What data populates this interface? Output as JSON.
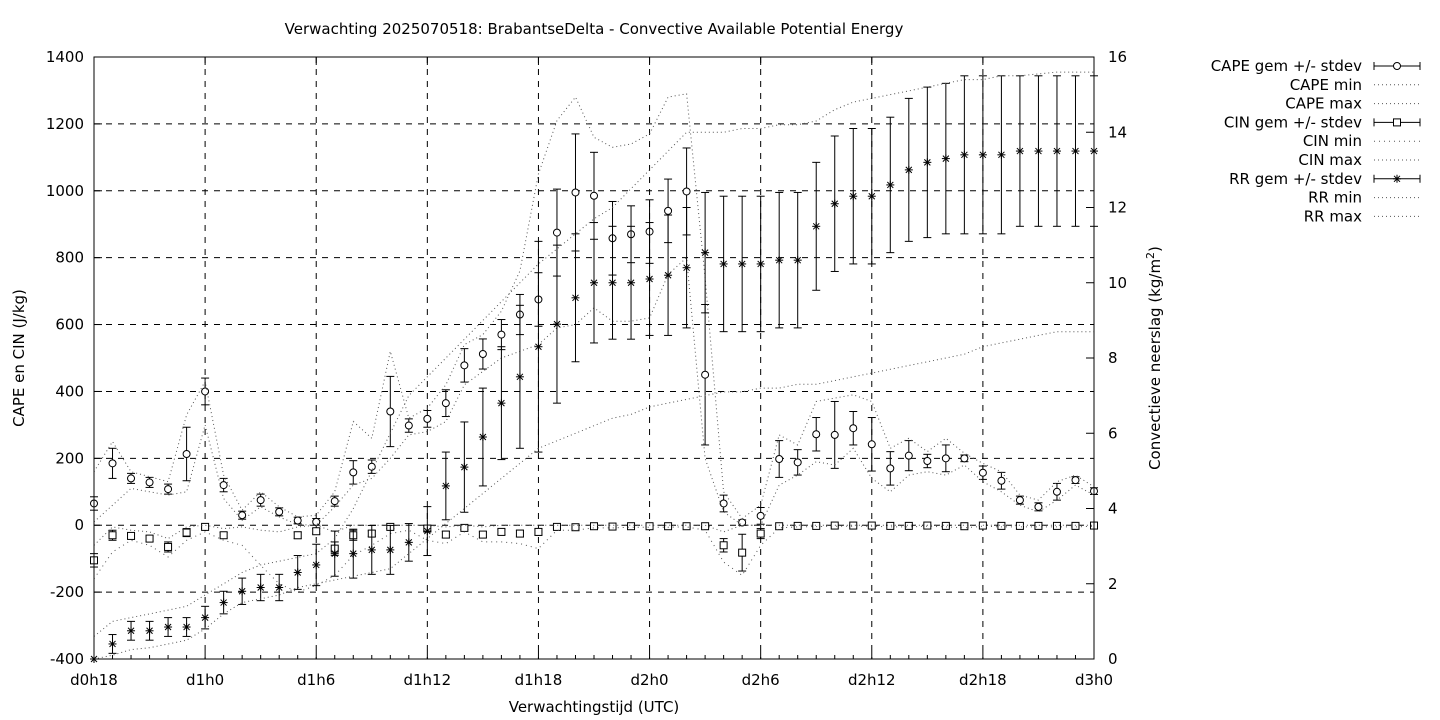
{
  "chart_data": {
    "type": "line",
    "title": "Verwachting 2025070518: BrabantseDelta - Convective Available Potential Energy",
    "xlabel": "Verwachtingstijd (UTC)",
    "ylabel": "CAPE en CIN (J/kg)",
    "y2label_main": "Convectieve neerslag (kg/m",
    "y2label_sup": "2",
    "y2label_end": ")",
    "xlim": [
      18,
      72
    ],
    "ylim": [
      -400,
      1400
    ],
    "y2lim": [
      0,
      16
    ],
    "grid": true,
    "legend_position": "top-right",
    "x_ticks": [
      {
        "value": 18,
        "label": "d0h18"
      },
      {
        "value": 24,
        "label": "d1h0"
      },
      {
        "value": 30,
        "label": "d1h6"
      },
      {
        "value": 36,
        "label": "d1h12"
      },
      {
        "value": 42,
        "label": "d1h18"
      },
      {
        "value": 48,
        "label": "d2h0"
      },
      {
        "value": 54,
        "label": "d2h6"
      },
      {
        "value": 60,
        "label": "d2h12"
      },
      {
        "value": 66,
        "label": "d2h18"
      },
      {
        "value": 72,
        "label": "d3h0"
      }
    ],
    "y_ticks": [
      {
        "value": -400,
        "label": "-400"
      },
      {
        "value": -200,
        "label": "-200"
      },
      {
        "value": 0,
        "label": "0"
      },
      {
        "value": 200,
        "label": "200"
      },
      {
        "value": 400,
        "label": "400"
      },
      {
        "value": 600,
        "label": "600"
      },
      {
        "value": 800,
        "label": "800"
      },
      {
        "value": 1000,
        "label": "1000"
      },
      {
        "value": 1200,
        "label": "1200"
      },
      {
        "value": 1400,
        "label": "1400"
      }
    ],
    "y2_ticks": [
      {
        "value": 0,
        "label": "0"
      },
      {
        "value": 2,
        "label": "2"
      },
      {
        "value": 4,
        "label": "4"
      },
      {
        "value": 6,
        "label": "6"
      },
      {
        "value": 8,
        "label": "8"
      },
      {
        "value": 10,
        "label": "10"
      },
      {
        "value": 12,
        "label": "12"
      },
      {
        "value": 14,
        "label": "14"
      },
      {
        "value": 16,
        "label": "16"
      }
    ],
    "x": [
      18,
      19,
      20,
      21,
      22,
      23,
      24,
      25,
      26,
      27,
      28,
      29,
      30,
      31,
      32,
      33,
      34,
      35,
      36,
      37,
      38,
      39,
      40,
      41,
      42,
      43,
      44,
      45,
      46,
      47,
      48,
      49,
      50,
      51,
      52,
      53,
      54,
      55,
      56,
      57,
      58,
      59,
      60,
      61,
      62,
      63,
      64,
      65,
      66,
      67,
      68,
      69,
      70,
      71,
      72
    ],
    "series": [
      {
        "name": "CAPE gem +/- stdev",
        "axis": "y",
        "marker": "circle",
        "values": [
          65,
          185,
          140,
          128,
          108,
          213,
          400,
          120,
          30,
          75,
          40,
          14,
          10,
          72,
          158,
          175,
          340,
          298,
          318,
          365,
          478,
          512,
          570,
          630,
          675,
          875,
          995,
          985,
          858,
          870,
          878,
          940,
          998,
          450,
          65,
          8,
          28,
          198,
          188,
          272,
          270,
          290,
          242,
          170,
          208,
          192,
          200,
          200,
          157,
          133,
          75,
          55,
          100,
          135,
          102
        ],
        "err": [
          20,
          45,
          15,
          15,
          15,
          80,
          40,
          20,
          12,
          18,
          12,
          10,
          10,
          15,
          35,
          20,
          105,
          20,
          25,
          40,
          50,
          45,
          45,
          60,
          80,
          130,
          175,
          130,
          110,
          85,
          95,
          95,
          130,
          210,
          25,
          8,
          25,
          55,
          38,
          50,
          100,
          50,
          80,
          50,
          45,
          20,
          40,
          10,
          20,
          25,
          12,
          12,
          25,
          10,
          10
        ]
      },
      {
        "name": "CAPE min",
        "axis": "y",
        "values": [
          10,
          60,
          110,
          100,
          90,
          100,
          300,
          80,
          15,
          55,
          25,
          2,
          0,
          55,
          120,
          140,
          200,
          270,
          280,
          310,
          420,
          460,
          500,
          520,
          540,
          590,
          600,
          650,
          610,
          610,
          620,
          750,
          800,
          200,
          40,
          0,
          0,
          120,
          150,
          190,
          180,
          230,
          140,
          100,
          150,
          160,
          150,
          180,
          130,
          100,
          60,
          40,
          75,
          120,
          90
        ]
      },
      {
        "name": "CAPE max",
        "axis": "y",
        "values": [
          160,
          250,
          160,
          145,
          130,
          330,
          430,
          150,
          45,
          100,
          55,
          25,
          30,
          100,
          310,
          260,
          520,
          320,
          350,
          420,
          540,
          570,
          640,
          760,
          1050,
          1210,
          1280,
          1160,
          1130,
          1140,
          1170,
          1280,
          1290,
          740,
          100,
          20,
          60,
          270,
          240,
          370,
          380,
          390,
          370,
          230,
          260,
          220,
          260,
          215,
          185,
          160,
          90,
          75,
          130,
          150,
          115
        ]
      },
      {
        "name": "CIN gem +/- stdev",
        "axis": "y",
        "marker": "square",
        "values": [
          -105,
          -30,
          -32,
          -40,
          -65,
          -22,
          -5,
          -30,
          null,
          null,
          null,
          -30,
          -18,
          -70,
          -30,
          -25,
          -5,
          null,
          -10,
          -28,
          -8,
          -28,
          -20,
          -25,
          -20,
          -5,
          -6,
          -3,
          -4,
          -3,
          -3,
          -3,
          -3,
          -3,
          -60,
          -82,
          -25,
          -3,
          -2,
          -2,
          -1,
          -1,
          -1,
          -2,
          -2,
          -1,
          -2,
          -3,
          -1,
          -2,
          -2,
          -2,
          -2,
          -2,
          -1
        ],
        "err": [
          20,
          15,
          8,
          8,
          15,
          12,
          4,
          8,
          null,
          null,
          null,
          10,
          8,
          20,
          15,
          8,
          5,
          null,
          8,
          10,
          5,
          8,
          8,
          10,
          10,
          4,
          4,
          3,
          3,
          2,
          2,
          2,
          2,
          2,
          20,
          55,
          15,
          3,
          2,
          2,
          1,
          1,
          1,
          2,
          2,
          1,
          2,
          3,
          1,
          2,
          2,
          2,
          2,
          2,
          1
        ]
      },
      {
        "name": "CIN min",
        "axis": "y",
        "values": [
          -160,
          -80,
          -45,
          -60,
          -95,
          -45,
          -20,
          -45,
          -60,
          -120,
          -175,
          -200,
          -180,
          -150,
          -90,
          -60,
          -25,
          -15,
          -45,
          -55,
          -20,
          -50,
          -50,
          -55,
          -70,
          -15,
          -15,
          -8,
          -8,
          -6,
          -6,
          -6,
          -5,
          -15,
          -110,
          -150,
          -60,
          -8,
          -5,
          -4,
          -3,
          -3,
          -3,
          -5,
          -5,
          -3,
          -5,
          -8,
          -3,
          -5,
          -5,
          -5,
          -5,
          -5,
          -3
        ]
      },
      {
        "name": "CIN max",
        "axis": "y",
        "values": [
          -60,
          -5,
          -15,
          -20,
          -40,
          -5,
          0,
          -10,
          -5,
          -15,
          -20,
          -5,
          0,
          -20,
          0,
          0,
          0,
          0,
          0,
          -5,
          0,
          -5,
          0,
          0,
          0,
          0,
          0,
          0,
          0,
          0,
          0,
          0,
          0,
          0,
          -20,
          0,
          0,
          0,
          0,
          0,
          0,
          0,
          0,
          0,
          0,
          0,
          0,
          0,
          0,
          0,
          0,
          0,
          0,
          0,
          0
        ]
      },
      {
        "name": "RR gem +/- stdev",
        "axis": "y2",
        "marker": "star",
        "values": [
          0,
          0.4,
          0.75,
          0.75,
          0.85,
          0.85,
          1.1,
          1.5,
          1.8,
          1.9,
          1.9,
          2.3,
          2.5,
          2.8,
          2.8,
          2.9,
          2.9,
          3.1,
          3.4,
          4.6,
          5.1,
          5.9,
          6.8,
          7.5,
          8.3,
          8.9,
          9.6,
          10.0,
          10.0,
          10.0,
          10.1,
          10.2,
          10.4,
          10.8,
          10.5,
          10.5,
          10.5,
          10.6,
          10.6,
          11.5,
          12.1,
          12.3,
          12.3,
          12.6,
          13.0,
          13.2,
          13.3,
          13.4,
          13.4,
          13.4,
          13.5,
          13.5,
          13.5,
          13.5,
          13.5
        ],
        "err": [
          0,
          0.25,
          0.25,
          0.25,
          0.25,
          0.25,
          0.3,
          0.3,
          0.35,
          0.35,
          0.35,
          0.45,
          0.55,
          0.6,
          0.65,
          0.65,
          0.65,
          0.5,
          0.65,
          0.9,
          1.2,
          1.3,
          1.5,
          1.9,
          2.8,
          2.1,
          1.7,
          1.6,
          1.5,
          1.5,
          1.5,
          1.6,
          1.6,
          1.6,
          1.8,
          1.8,
          1.8,
          1.8,
          1.8,
          1.7,
          1.8,
          1.8,
          1.8,
          1.8,
          1.9,
          2.0,
          2.0,
          2.1,
          2.1,
          2.1,
          2.0,
          2.0,
          2.0,
          2.0,
          2.0
        ]
      },
      {
        "name": "RR min",
        "axis": "y2",
        "values": [
          0,
          0.1,
          0.25,
          0.3,
          0.4,
          0.5,
          0.8,
          1.2,
          1.5,
          1.6,
          1.7,
          1.9,
          2.0,
          2.1,
          2.2,
          2.3,
          2.4,
          2.8,
          3.2,
          3.6,
          4.0,
          4.4,
          4.8,
          5.2,
          5.6,
          5.8,
          6.0,
          6.2,
          6.4,
          6.5,
          6.7,
          6.8,
          6.9,
          7.0,
          7.1,
          7.1,
          7.2,
          7.2,
          7.3,
          7.3,
          7.4,
          7.5,
          7.6,
          7.7,
          7.8,
          7.9,
          8.0,
          8.1,
          8.3,
          8.4,
          8.5,
          8.6,
          8.7,
          8.7,
          8.7
        ]
      },
      {
        "name": "RR max",
        "axis": "y2",
        "values": [
          0.6,
          1.0,
          1.1,
          1.2,
          1.3,
          1.4,
          1.7,
          2.0,
          2.3,
          2.5,
          2.6,
          2.7,
          2.8,
          3.2,
          4.0,
          5.0,
          6.0,
          7.0,
          7.5,
          8.0,
          8.5,
          9.0,
          9.5,
          10.0,
          10.5,
          10.9,
          11.3,
          11.7,
          12.0,
          12.5,
          13.0,
          13.5,
          14.0,
          14.0,
          14.0,
          14.1,
          14.1,
          14.2,
          14.2,
          14.3,
          14.6,
          14.8,
          14.9,
          15.0,
          15.1,
          15.2,
          15.3,
          15.4,
          15.4,
          15.5,
          15.5,
          15.55,
          15.6,
          15.6,
          15.6
        ]
      }
    ]
  }
}
